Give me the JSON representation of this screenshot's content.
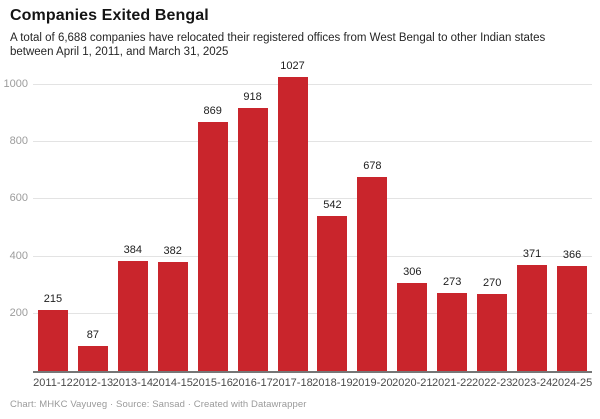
{
  "header": {
    "title": "Companies Exited Bengal",
    "subtitle": "A total of 6,688 companies have relocated their registered offices from West Bengal to other Indian states between April 1, 2011, and March 31, 2025"
  },
  "chart_data": {
    "type": "bar",
    "categories": [
      "2011-12",
      "2012-13",
      "2013-14",
      "2014-15",
      "2015-16",
      "2016-17",
      "2017-18",
      "2018-19",
      "2019-20",
      "2020-21",
      "2021-22",
      "2022-23",
      "2023-24",
      "2024-25"
    ],
    "values": [
      215,
      87,
      384,
      382,
      869,
      918,
      1027,
      542,
      678,
      306,
      273,
      270,
      371,
      366
    ],
    "title": "Companies Exited Bengal",
    "subtitle": "A total of 6,688 companies have relocated their registered offices from West Bengal to other Indian states between April 1, 2011, and March 31, 2025",
    "xlabel": "",
    "ylabel": "",
    "ylim": [
      0,
      1080
    ],
    "yticks": [
      200,
      400,
      600,
      800,
      1000
    ],
    "grid": "horizontal",
    "legend": "none",
    "value_labels": true
  },
  "colors": {
    "bar": "#c9252c",
    "grid": "#e3e3e3",
    "axis_line": "#767676",
    "ytick_text": "#9c9c9c",
    "xtick_text": "#4b4b4b",
    "value_label_text": "#1d1d1d",
    "title_text": "#141414",
    "subtitle_text": "#262626",
    "footer_text": "#9a9a9a"
  },
  "footer": {
    "text": "Chart: MHKC Vayuveg · Source: Sansad · Created with Datawrapper"
  }
}
